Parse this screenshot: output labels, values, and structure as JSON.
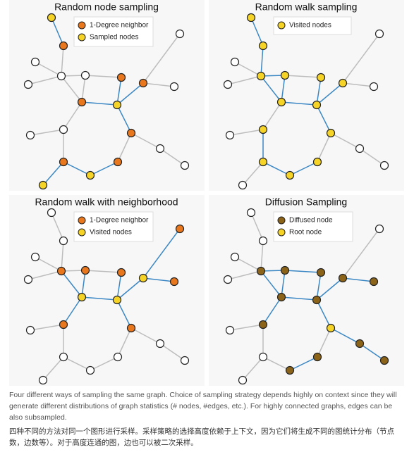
{
  "panels": [
    {
      "title": "Random node sampling",
      "legend": [
        "1-Degree neighbor",
        "Sampled nodes"
      ]
    },
    {
      "title": "Random walk sampling",
      "legend": [
        "Visited nodes"
      ]
    },
    {
      "title": "Random walk with neighborhood",
      "legend": [
        "1-Degree neighbor",
        "Visited nodes"
      ]
    },
    {
      "title": "Diffusion Sampling",
      "legend": [
        "Diffused node",
        "Root node"
      ]
    }
  ],
  "caption_en": "Four different ways of sampling the same graph. Choice of sampling strategy depends highly on context since they will generate different distributions of graph statistics (# nodes, #edges, etc.). For highly connected graphs, edges can be also subsampled.",
  "caption_zh": "四种不同的方法对同一个图形进行采样。采样策略的选择高度依赖于上下文，因为它们将生成不同的图统计分布（节点数，边数等）。对于高度连通的图，边也可以被二次采样。"
}
